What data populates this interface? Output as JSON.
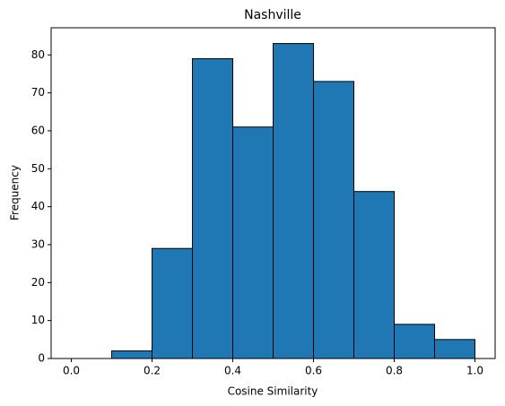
{
  "chart_data": {
    "type": "histogram",
    "title": "Nashville",
    "xlabel": "Cosine Similarity",
    "ylabel": "Frequency",
    "bins": [
      0,
      0.1,
      0.2,
      0.3,
      0.4,
      0.5,
      0.6,
      0.7,
      0.8,
      0.9,
      1.0
    ],
    "values": [
      0,
      2,
      29,
      79,
      61,
      83,
      73,
      44,
      9,
      5
    ],
    "color": "#1f77b4",
    "edgecolor": "#000000",
    "xlim": [
      -0.05,
      1.05
    ],
    "ylim": [
      0,
      87.15
    ],
    "xticks": [
      {
        "value": 0,
        "label": "0.0"
      },
      0.2,
      0.4,
      0.6,
      0.8,
      {
        "value": 1,
        "label": "1.0"
      }
    ],
    "yticks": [
      0,
      10,
      20,
      30,
      40,
      50,
      60,
      70,
      80
    ],
    "grid": false
  }
}
